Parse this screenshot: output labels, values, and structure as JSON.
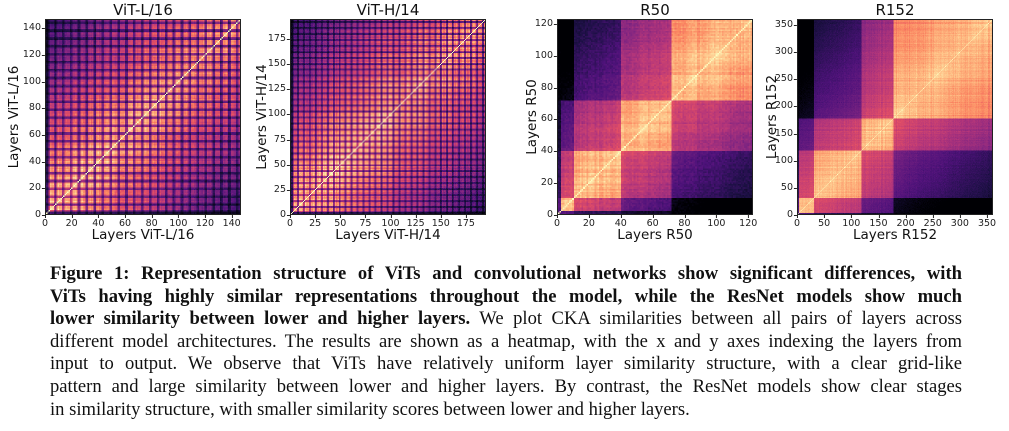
{
  "figure": {
    "label": "Figure 1:",
    "caption_lines": [
      {
        "bold": "Figure 1: Representation structure of ViTs and convolutional networks show significant differences, with",
        "normal": ""
      },
      {
        "bold": "ViTs having highly similar representations throughout the model, while the ResNet models show much",
        "normal": ""
      },
      {
        "bold": "lower similarity between lower and higher layers.",
        "normal": " We plot CKA similarities between all pairs of layers across"
      },
      {
        "bold": "",
        "normal": "different model architectures. The results are shown as a heatmap, with the x and y axes indexing the layers from"
      },
      {
        "bold": "",
        "normal": "input to output. We observe that ViTs have relatively uniform layer similarity structure, with a clear grid-like"
      },
      {
        "bold": "",
        "normal": "pattern and large similarity between lower and higher layers. By contrast, the ResNet models show clear stages"
      },
      {
        "bold": "",
        "normal": "in similarity structure, with smaller similarity scores between lower and higher layers."
      }
    ]
  },
  "chart_data": [
    {
      "type": "heatmap",
      "title": "ViT-L/16",
      "xlabel": "Layers ViT-L/16",
      "ylabel": "Layers ViT-L/16",
      "n_layers": 147,
      "xlim": [
        0,
        147
      ],
      "ylim": [
        0,
        147
      ],
      "xticks": [
        0,
        20,
        40,
        60,
        80,
        100,
        120,
        140
      ],
      "yticks": [
        0,
        20,
        40,
        60,
        80,
        100,
        120,
        140
      ],
      "colormap": "magma",
      "value_range": [
        0,
        1
      ],
      "structure": "grid-like, high similarity across layers, periodic dark stripes",
      "period": 6,
      "family": "vit"
    },
    {
      "type": "heatmap",
      "title": "ViT-H/14",
      "xlabel": "Layers ViT-H/14",
      "ylabel": "Layers ViT-H/14",
      "n_layers": 195,
      "xlim": [
        0,
        195
      ],
      "ylim": [
        0,
        195
      ],
      "xticks": [
        0,
        25,
        50,
        75,
        100,
        125,
        150,
        175
      ],
      "yticks": [
        0,
        25,
        50,
        75,
        100,
        125,
        150,
        175
      ],
      "colormap": "magma",
      "value_range": [
        0,
        1
      ],
      "structure": "grid-like, high similarity across layers, periodic dark stripes",
      "period": 6,
      "family": "vit"
    },
    {
      "type": "heatmap",
      "title": "R50",
      "xlabel": "Layers R50",
      "ylabel": "Layers R50",
      "n_layers": 123,
      "xlim": [
        0,
        123
      ],
      "ylim": [
        0,
        123
      ],
      "xticks": [
        0,
        20,
        40,
        60,
        80,
        100,
        120
      ],
      "yticks": [
        0,
        20,
        40,
        60,
        80,
        100,
        120
      ],
      "colormap": "magma",
      "value_range": [
        0,
        1
      ],
      "structure": "block stages, low similarity between lower and higher layers",
      "stage_boundaries": [
        0,
        10,
        40,
        72,
        123
      ],
      "family": "resnet"
    },
    {
      "type": "heatmap",
      "title": "R152",
      "xlabel": "Layers R152",
      "ylabel": "Layers R152",
      "n_layers": 361,
      "xlim": [
        0,
        361
      ],
      "ylim": [
        0,
        361
      ],
      "xticks": [
        0,
        50,
        100,
        150,
        200,
        250,
        300,
        350
      ],
      "yticks": [
        0,
        50,
        100,
        150,
        200,
        250,
        300,
        350
      ],
      "colormap": "magma",
      "value_range": [
        0,
        1
      ],
      "structure": "block stages, low similarity between lower and higher layers",
      "stage_boundaries": [
        0,
        30,
        118,
        178,
        361
      ],
      "family": "resnet"
    }
  ]
}
